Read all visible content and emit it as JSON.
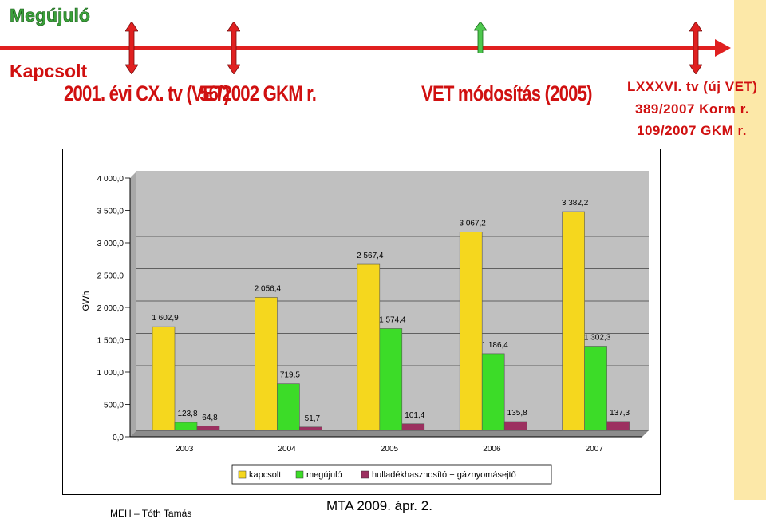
{
  "header": {
    "megujulo": "Megújuló",
    "kapcsolt": "Kapcsolt",
    "law_2001": "2001. évi CX. tv (VET)",
    "gkm_2002": "56/2002 GKM r.",
    "vet_2005": "VET módosítás (2005)",
    "right_line1": "LXXXVI. tv (új VET)",
    "right_line2": "389/2007 Korm r.",
    "right_line3": "109/2007 GKM r."
  },
  "colors": {
    "timeline": "#e02020",
    "marker_red": "#e02020",
    "marker_green": "#4ec84e",
    "plot_bg": "#c0c0c0",
    "kapcsolt": "#f5d71e",
    "megujulo": "#3cdc28",
    "hulladek": "#9c3060"
  },
  "chart_data": {
    "type": "bar",
    "ylabel": "GWh",
    "ylim": [
      0,
      4000
    ],
    "yticks": [
      "0,0",
      "500,0",
      "1 000,0",
      "1 500,0",
      "2 000,0",
      "2 500,0",
      "3 000,0",
      "3 500,0",
      "4 000,0"
    ],
    "categories": [
      "2003",
      "2004",
      "2005",
      "2006",
      "2007"
    ],
    "series": [
      {
        "name": "kapcsolt",
        "values": [
          1602.9,
          2056.4,
          2567.4,
          3067.2,
          3382.2
        ],
        "labels": [
          "1 602,9",
          "2 056,4",
          "2 567,4",
          "3 067,2",
          "3 382,2"
        ]
      },
      {
        "name": "megújuló",
        "values": [
          123.8,
          719.5,
          1574.4,
          1186.4,
          1302.3
        ],
        "labels": [
          "123,8",
          "719,5",
          "1 574,4",
          "1 186,4",
          "1 302,3"
        ]
      },
      {
        "name": "hulladékhasznosító + gáznyomásejtő",
        "values": [
          64.8,
          51.7,
          101.4,
          135.8,
          137.3
        ],
        "labels": [
          "64,8",
          "51,7",
          "101,4",
          "135,8",
          "137,3"
        ]
      }
    ],
    "grid": true,
    "legend": "bottom"
  },
  "footer": {
    "author": "MEH – Tóth Tamás",
    "event": "MTA 2009. ápr. 2."
  }
}
